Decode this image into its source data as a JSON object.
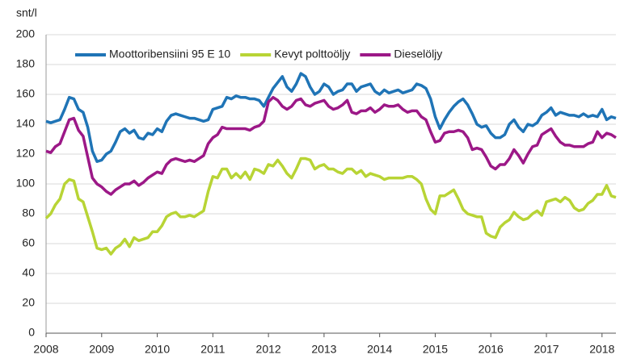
{
  "chart_data": {
    "type": "line",
    "title": "snt/l",
    "categories": [
      "2008",
      null,
      null,
      null,
      null,
      null,
      null,
      null,
      null,
      null,
      null,
      null,
      "2009",
      null,
      null,
      null,
      null,
      null,
      null,
      null,
      null,
      null,
      null,
      null,
      "2010",
      null,
      null,
      null,
      null,
      null,
      null,
      null,
      null,
      null,
      null,
      null,
      "2011",
      null,
      null,
      null,
      null,
      null,
      null,
      null,
      null,
      null,
      null,
      null,
      "2012",
      null,
      null,
      null,
      null,
      null,
      null,
      null,
      null,
      null,
      null,
      null,
      "2013",
      null,
      null,
      null,
      null,
      null,
      null,
      null,
      null,
      null,
      null,
      null,
      "2014",
      null,
      null,
      null,
      null,
      null,
      null,
      null,
      null,
      null,
      null,
      null,
      "2015",
      null,
      null,
      null,
      null,
      null,
      null,
      null,
      null,
      null,
      null,
      null,
      "2016",
      null,
      null,
      null,
      null,
      null,
      null,
      null,
      null,
      null,
      null,
      null,
      "2017",
      null,
      null,
      null,
      null,
      null,
      null,
      null,
      null,
      null,
      null,
      null,
      "2018",
      null,
      null,
      null
    ],
    "series": [
      {
        "name": "Moottoribensiini 95 E 10",
        "color": "#1f74b6",
        "values": [
          142,
          141,
          142,
          143,
          150,
          158,
          157,
          150,
          148,
          138,
          122,
          115,
          116,
          120,
          122,
          128,
          135,
          137,
          134,
          136,
          131,
          130,
          134,
          133,
          137,
          135,
          142,
          146,
          147,
          146,
          145,
          144,
          144,
          143,
          142,
          143,
          150,
          151,
          152,
          158,
          157,
          159,
          158,
          158,
          157,
          157,
          156,
          152,
          158,
          164,
          168,
          172,
          165,
          162,
          167,
          174,
          172,
          165,
          160,
          162,
          167,
          165,
          160,
          162,
          163,
          167,
          167,
          162,
          165,
          166,
          167,
          162,
          160,
          163,
          161,
          162,
          163,
          161,
          162,
          163,
          167,
          166,
          164,
          157,
          145,
          137,
          143,
          148,
          152,
          155,
          157,
          153,
          147,
          140,
          138,
          139,
          134,
          131,
          131,
          133,
          140,
          143,
          138,
          135,
          140,
          139,
          141,
          146,
          148,
          151,
          146,
          148,
          147,
          146,
          146,
          145,
          147,
          145,
          146,
          145,
          150,
          143,
          145,
          144
        ]
      },
      {
        "name": "Kevyt polttoöljy",
        "color": "#b8d435",
        "values": [
          77,
          80,
          86,
          90,
          100,
          103,
          102,
          90,
          88,
          78,
          68,
          57,
          56,
          57,
          53,
          57,
          59,
          63,
          58,
          64,
          62,
          63,
          64,
          68,
          68,
          72,
          78,
          80,
          81,
          78,
          78,
          79,
          78,
          80,
          82,
          95,
          105,
          104,
          110,
          110,
          104,
          107,
          104,
          108,
          103,
          110,
          109,
          107,
          113,
          112,
          116,
          112,
          107,
          104,
          110,
          117,
          117,
          116,
          110,
          112,
          113,
          110,
          110,
          108,
          107,
          110,
          110,
          107,
          109,
          105,
          107,
          106,
          105,
          103,
          104,
          104,
          104,
          104,
          105,
          105,
          103,
          100,
          90,
          83,
          80,
          92,
          92,
          94,
          96,
          90,
          83,
          80,
          79,
          78,
          78,
          67,
          65,
          64,
          71,
          74,
          76,
          81,
          78,
          76,
          77,
          80,
          82,
          79,
          88,
          89,
          90,
          88,
          91,
          89,
          84,
          82,
          83,
          87,
          89,
          93,
          93,
          99,
          92,
          91
        ]
      },
      {
        "name": "Dieselöljy",
        "color": "#9c1887",
        "values": [
          122,
          121,
          125,
          127,
          135,
          143,
          144,
          136,
          132,
          118,
          104,
          100,
          98,
          95,
          93,
          96,
          98,
          100,
          100,
          102,
          99,
          101,
          104,
          106,
          108,
          107,
          113,
          116,
          117,
          116,
          115,
          116,
          115,
          117,
          119,
          127,
          131,
          133,
          138,
          137,
          137,
          137,
          137,
          137,
          136,
          138,
          139,
          142,
          155,
          158,
          156,
          152,
          150,
          152,
          156,
          157,
          153,
          152,
          154,
          155,
          156,
          152,
          150,
          151,
          153,
          156,
          148,
          147,
          149,
          149,
          151,
          148,
          150,
          153,
          152,
          152,
          153,
          150,
          148,
          149,
          149,
          145,
          143,
          135,
          128,
          129,
          134,
          135,
          135,
          136,
          135,
          131,
          123,
          124,
          123,
          118,
          112,
          110,
          113,
          113,
          117,
          123,
          119,
          114,
          120,
          125,
          126,
          133,
          135,
          137,
          132,
          128,
          126,
          126,
          125,
          125,
          125,
          127,
          128,
          135,
          131,
          134,
          133,
          131
        ]
      }
    ],
    "ylim": [
      0,
      200
    ],
    "yticks": [
      0,
      20,
      40,
      60,
      80,
      100,
      120,
      140,
      160,
      180,
      200
    ],
    "grid": true
  }
}
